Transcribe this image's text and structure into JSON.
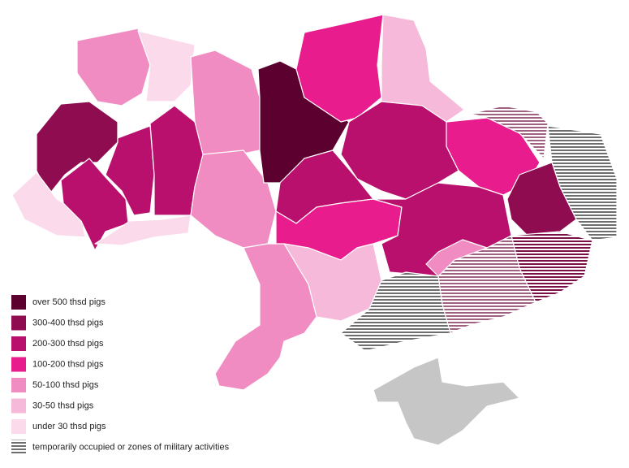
{
  "legend": {
    "items": [
      {
        "label": "over 500 thsd pigs",
        "color": "#5c0030"
      },
      {
        "label": "300-400 thsd pigs",
        "color": "#8e0c4f"
      },
      {
        "label": "200-300 thsd pigs",
        "color": "#b8106c"
      },
      {
        "label": "100-200 thsd pigs",
        "color": "#e91c8d"
      },
      {
        "label": "50-100 thsd pigs",
        "color": "#f08cc1"
      },
      {
        "label": "30-50 thsd pigs",
        "color": "#f6b9da"
      },
      {
        "label": "under 30 thsd pigs",
        "color": "#fbdaeb"
      },
      {
        "label": "temporarily occupied or zones of military activities",
        "color": "#6e6e6e",
        "pattern": "stripes"
      }
    ]
  }
}
